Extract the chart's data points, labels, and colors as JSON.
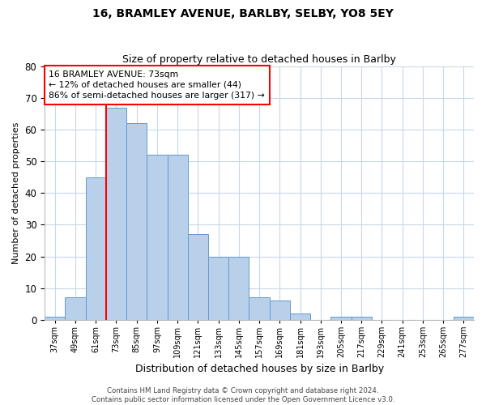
{
  "title": "16, BRAMLEY AVENUE, BARLBY, SELBY, YO8 5EY",
  "subtitle": "Size of property relative to detached houses in Barlby",
  "xlabel": "Distribution of detached houses by size in Barlby",
  "ylabel": "Number of detached properties",
  "categories": [
    "37sqm",
    "49sqm",
    "61sqm",
    "73sqm",
    "85sqm",
    "97sqm",
    "109sqm",
    "121sqm",
    "133sqm",
    "145sqm",
    "157sqm",
    "169sqm",
    "181sqm",
    "193sqm",
    "205sqm",
    "217sqm",
    "229sqm",
    "241sqm",
    "253sqm",
    "265sqm",
    "277sqm"
  ],
  "values": [
    1,
    7,
    45,
    67,
    62,
    52,
    52,
    27,
    20,
    20,
    7,
    6,
    2,
    0,
    1,
    1,
    0,
    0,
    0,
    0,
    1
  ],
  "bar_color": "#b8d0ea",
  "bar_edge_color": "#6699cc",
  "vline_x_index": 3,
  "vline_color": "red",
  "annotation_line1": "16 BRAMLEY AVENUE: 73sqm",
  "annotation_line2": "← 12% of detached houses are smaller (44)",
  "annotation_line3": "86% of semi-detached houses are larger (317) →",
  "annotation_box_edgecolor": "red",
  "ylim": [
    0,
    80
  ],
  "yticks": [
    0,
    10,
    20,
    30,
    40,
    50,
    60,
    70,
    80
  ],
  "footer_line1": "Contains HM Land Registry data © Crown copyright and database right 2024.",
  "footer_line2": "Contains public sector information licensed under the Open Government Licence v3.0.",
  "background_color": "#ffffff",
  "grid_color": "#c8d8e8",
  "title_fontsize": 10,
  "subtitle_fontsize": 9
}
